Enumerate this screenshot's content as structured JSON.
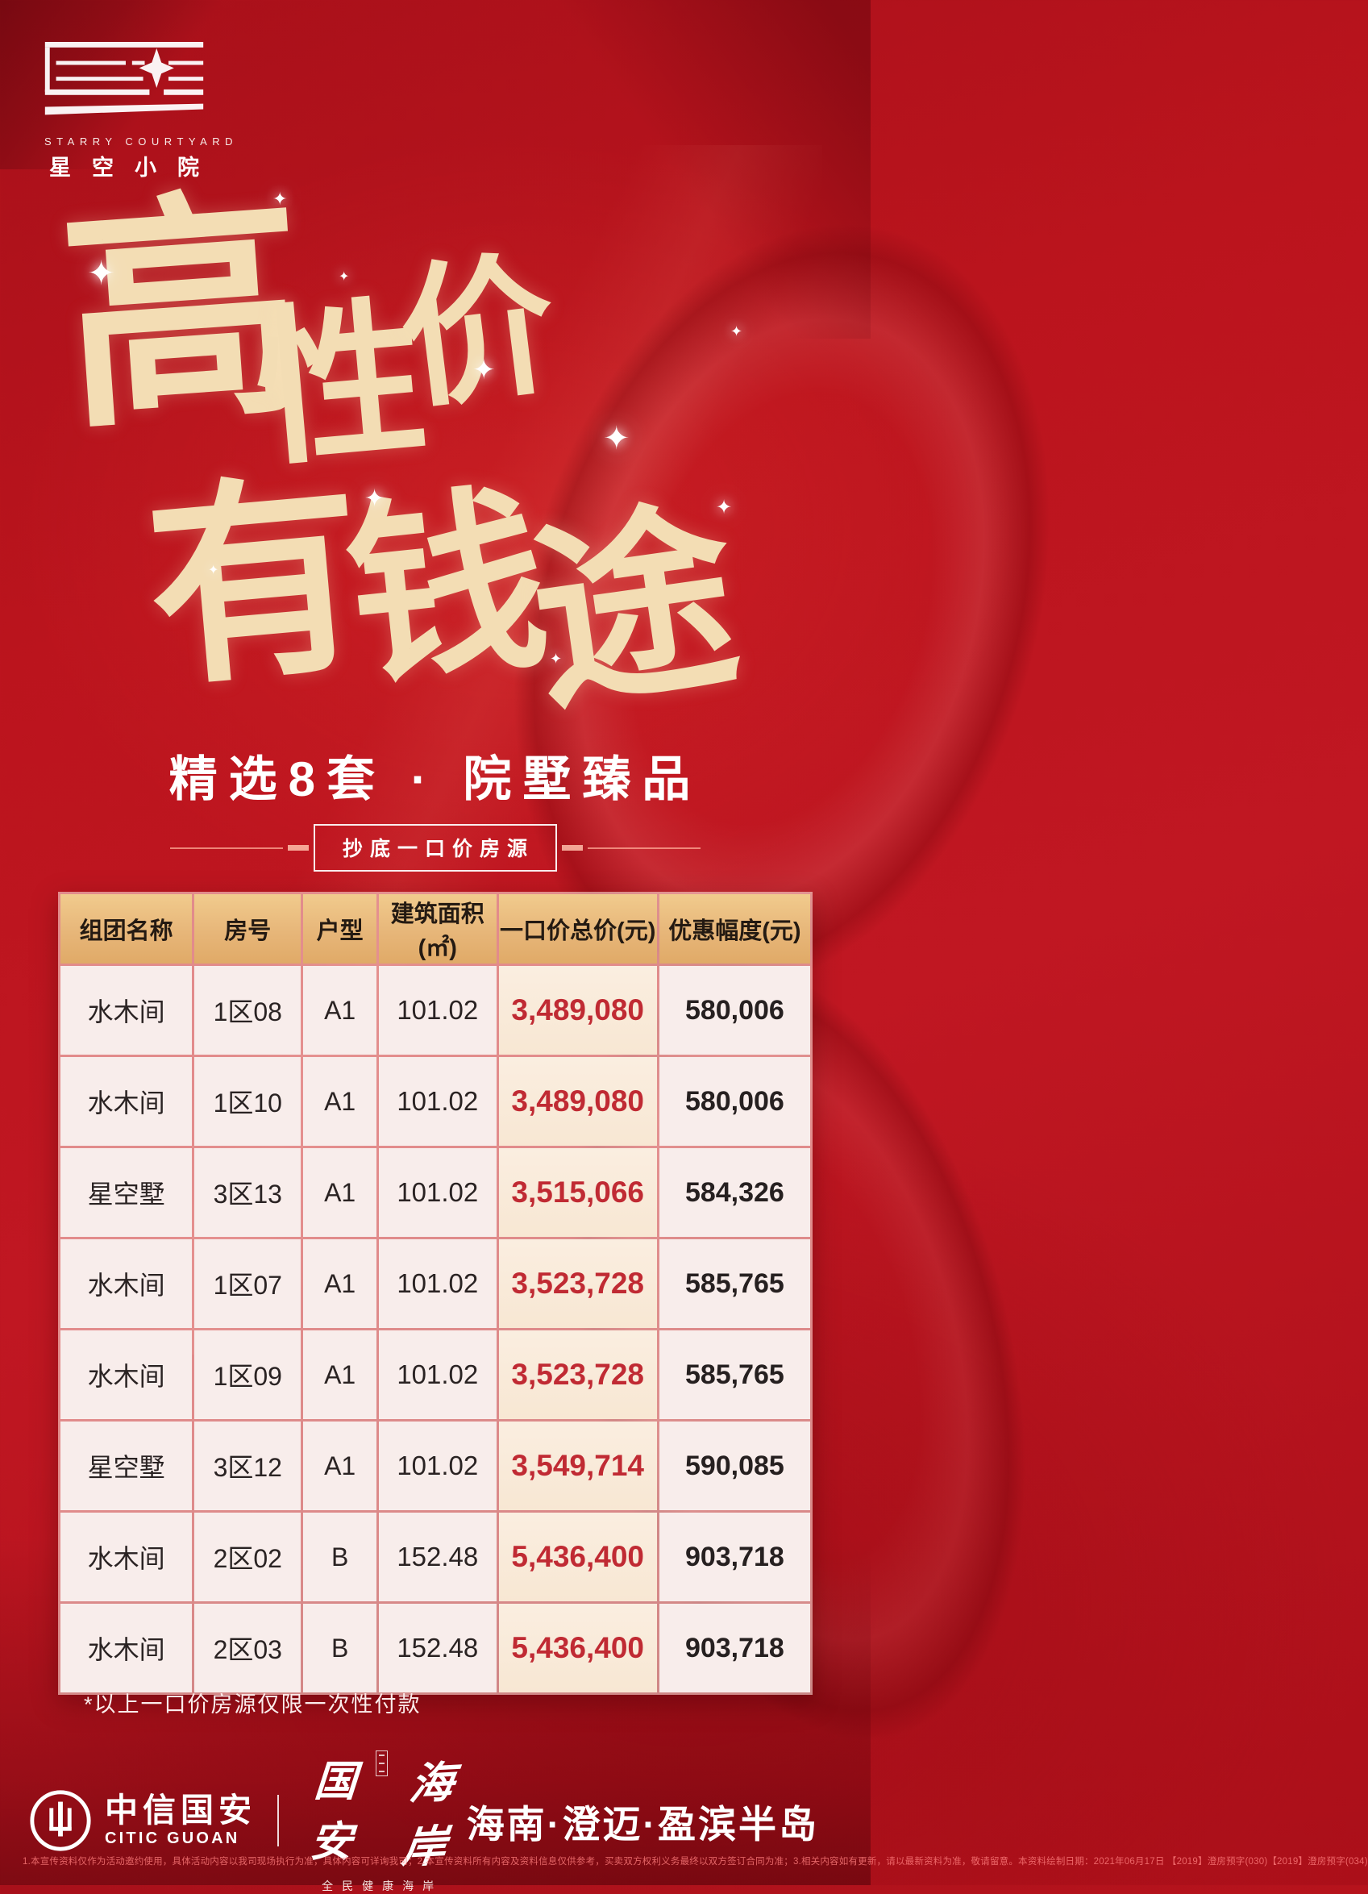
{
  "brand": {
    "name_en": "STARRY COURTYARD",
    "name_cn": "星空小院"
  },
  "hero": {
    "title_char_1": "高",
    "title_char_2": "性",
    "title_char_3": "价",
    "title_char_4": "有",
    "title_char_5": "钱",
    "title_char_6": "途",
    "subtitle": "精选8套 · 院墅臻品",
    "tag": "抄底一口价房源"
  },
  "icons": {
    "sparkle": "✦"
  },
  "table": {
    "headers": [
      "组团名称",
      "房号",
      "户型",
      "建筑面积(㎡)",
      "一口价总价(元)",
      "优惠幅度(元)"
    ],
    "rows": [
      [
        "水木间",
        "1区08",
        "A1",
        "101.02",
        "3,489,080",
        "580,006"
      ],
      [
        "水木间",
        "1区10",
        "A1",
        "101.02",
        "3,489,080",
        "580,006"
      ],
      [
        "星空墅",
        "3区13",
        "A1",
        "101.02",
        "3,515,066",
        "584,326"
      ],
      [
        "水木间",
        "1区07",
        "A1",
        "101.02",
        "3,523,728",
        "585,765"
      ],
      [
        "水木间",
        "1区09",
        "A1",
        "101.02",
        "3,523,728",
        "585,765"
      ],
      [
        "星空墅",
        "3区12",
        "A1",
        "101.02",
        "3,549,714",
        "590,085"
      ],
      [
        "水木间",
        "2区02",
        "B",
        "152.48",
        "5,436,400",
        "903,718"
      ],
      [
        "水木间",
        "2区03",
        "B",
        "152.48",
        "5,436,400",
        "903,718"
      ]
    ]
  },
  "footnote": "*以上一口价房源仅限一次性付款",
  "footer": {
    "citic_cn": "中信国安",
    "citic_en": "CITIC GUOAN",
    "coast_cn1": "国安",
    "coast_cn2": "海岸",
    "coast_tagline": "全民健康海岸",
    "location": "海南·澄迈·盈滨半岛",
    "fine_print": "1.本宣传资料仅作为活动邀约使用，具体活动内容以我司现场执行为准，具体内容可详询我司；2.本宣传资料所有内容及资料信息仅供参考，买卖双方权利义务最终以双方签订合同为准；3.相关内容如有更新，请以最新资料为准，敬请留意。本资料绘制日期：2021年06月17日 【2019】澄房预字(030)【2019】澄房预字(034)"
  },
  "colors": {
    "background_red": "#bb141d",
    "calligraphy_cream": "#f3ddb4",
    "table_header_gold": "#e7b679",
    "cell_pink": "#f8edeb",
    "price_column_cream": "#f9ebd9",
    "price_red": "#c02a33",
    "white": "#ffffff"
  }
}
